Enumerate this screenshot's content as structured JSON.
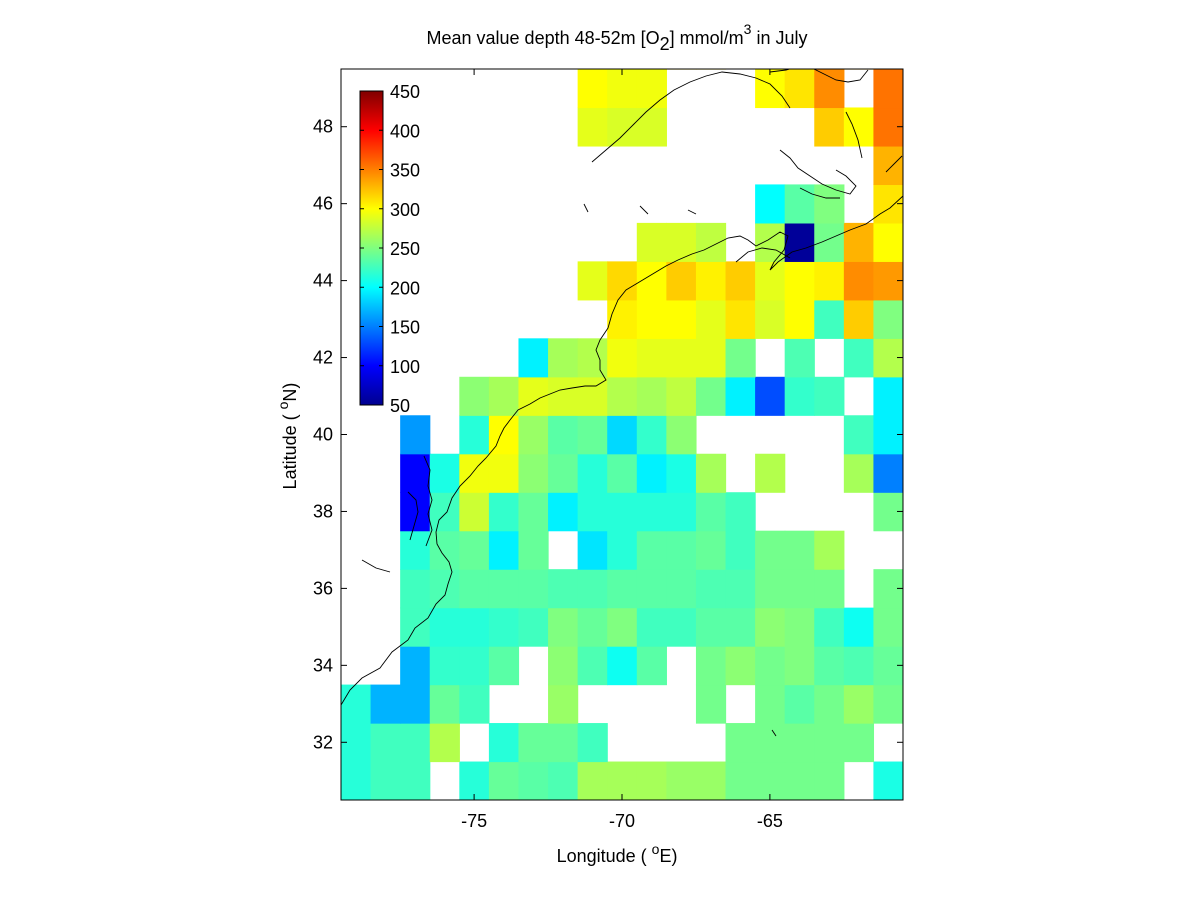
{
  "chart_data": {
    "type": "heatmap",
    "title": {
      "part1": "Mean value depth 48-52m [O",
      "sub": "2",
      "part2": "] mmol/m",
      "sup": "3",
      "part3": " in July"
    },
    "xlabel": {
      "pre": "Longitude ( ",
      "sup": "o",
      "post": "E)"
    },
    "ylabel": {
      "pre": "Latitude ( ",
      "sup": "o",
      "post": "N)"
    },
    "xlim": [
      -79.5,
      -60.5
    ],
    "ylim": [
      30.5,
      49.5
    ],
    "xticks": [
      -75,
      -70,
      -65
    ],
    "yticks": [
      32,
      34,
      36,
      38,
      40,
      42,
      44,
      46,
      48
    ],
    "colorbar": {
      "range": [
        50,
        450
      ],
      "ticks": [
        50,
        100,
        150,
        200,
        250,
        300,
        350,
        400,
        450
      ],
      "colormap": "jet",
      "position": "top-left"
    },
    "grid_cell_size_deg": 1,
    "cells": [
      {
        "lon": -79,
        "lat": 31,
        "v": 215
      },
      {
        "lon": -78,
        "lat": 31,
        "v": 225
      },
      {
        "lon": -77,
        "lat": 31,
        "v": 225
      },
      {
        "lon": -75,
        "lat": 31,
        "v": 215
      },
      {
        "lon": -74,
        "lat": 31,
        "v": 240
      },
      {
        "lon": -73,
        "lat": 31,
        "v": 235
      },
      {
        "lon": -72,
        "lat": 31,
        "v": 230
      },
      {
        "lon": -71,
        "lat": 31,
        "v": 265
      },
      {
        "lon": -70,
        "lat": 31,
        "v": 265
      },
      {
        "lon": -69,
        "lat": 31,
        "v": 265
      },
      {
        "lon": -68,
        "lat": 31,
        "v": 260
      },
      {
        "lon": -67,
        "lat": 31,
        "v": 260
      },
      {
        "lon": -66,
        "lat": 31,
        "v": 245
      },
      {
        "lon": -65,
        "lat": 31,
        "v": 245
      },
      {
        "lon": -64,
        "lat": 31,
        "v": 245
      },
      {
        "lon": -63,
        "lat": 31,
        "v": 245
      },
      {
        "lon": -61,
        "lat": 31,
        "v": 210
      },
      {
        "lon": -79,
        "lat": 32,
        "v": 215
      },
      {
        "lon": -78,
        "lat": 32,
        "v": 225
      },
      {
        "lon": -77,
        "lat": 32,
        "v": 225
      },
      {
        "lon": -76,
        "lat": 32,
        "v": 270
      },
      {
        "lon": -74,
        "lat": 32,
        "v": 215
      },
      {
        "lon": -73,
        "lat": 32,
        "v": 240
      },
      {
        "lon": -72,
        "lat": 32,
        "v": 240
      },
      {
        "lon": -71,
        "lat": 32,
        "v": 225
      },
      {
        "lon": -66,
        "lat": 32,
        "v": 245
      },
      {
        "lon": -65,
        "lat": 32,
        "v": 245
      },
      {
        "lon": -64,
        "lat": 32,
        "v": 245
      },
      {
        "lon": -63,
        "lat": 32,
        "v": 245
      },
      {
        "lon": -62,
        "lat": 32,
        "v": 245
      },
      {
        "lon": -79,
        "lat": 33,
        "v": 215
      },
      {
        "lon": -78,
        "lat": 33,
        "v": 170
      },
      {
        "lon": -77,
        "lat": 33,
        "v": 170
      },
      {
        "lon": -76,
        "lat": 33,
        "v": 240
      },
      {
        "lon": -75,
        "lat": 33,
        "v": 225
      },
      {
        "lon": -72,
        "lat": 33,
        "v": 260
      },
      {
        "lon": -67,
        "lat": 33,
        "v": 245
      },
      {
        "lon": -65,
        "lat": 33,
        "v": 245
      },
      {
        "lon": -64,
        "lat": 33,
        "v": 235
      },
      {
        "lon": -63,
        "lat": 33,
        "v": 245
      },
      {
        "lon": -62,
        "lat": 33,
        "v": 260
      },
      {
        "lon": -61,
        "lat": 33,
        "v": 245
      },
      {
        "lon": -60,
        "lat": 33,
        "v": 275
      },
      {
        "lon": -77,
        "lat": 34,
        "v": 170
      },
      {
        "lon": -76,
        "lat": 34,
        "v": 220
      },
      {
        "lon": -75,
        "lat": 34,
        "v": 220
      },
      {
        "lon": -74,
        "lat": 34,
        "v": 235
      },
      {
        "lon": -72,
        "lat": 34,
        "v": 255
      },
      {
        "lon": -71,
        "lat": 34,
        "v": 230
      },
      {
        "lon": -70,
        "lat": 34,
        "v": 205
      },
      {
        "lon": -69,
        "lat": 34,
        "v": 235
      },
      {
        "lon": -67,
        "lat": 34,
        "v": 245
      },
      {
        "lon": -66,
        "lat": 34,
        "v": 255
      },
      {
        "lon": -65,
        "lat": 34,
        "v": 245
      },
      {
        "lon": -64,
        "lat": 34,
        "v": 250
      },
      {
        "lon": -63,
        "lat": 34,
        "v": 235
      },
      {
        "lon": -62,
        "lat": 34,
        "v": 230
      },
      {
        "lon": -61,
        "lat": 34,
        "v": 240
      },
      {
        "lon": -60,
        "lat": 34,
        "v": 240
      },
      {
        "lon": -77,
        "lat": 35,
        "v": 225
      },
      {
        "lon": -76,
        "lat": 35,
        "v": 215
      },
      {
        "lon": -75,
        "lat": 35,
        "v": 215
      },
      {
        "lon": -74,
        "lat": 35,
        "v": 220
      },
      {
        "lon": -73,
        "lat": 35,
        "v": 225
      },
      {
        "lon": -72,
        "lat": 35,
        "v": 250
      },
      {
        "lon": -71,
        "lat": 35,
        "v": 240
      },
      {
        "lon": -70,
        "lat": 35,
        "v": 250
      },
      {
        "lon": -69,
        "lat": 35,
        "v": 225
      },
      {
        "lon": -68,
        "lat": 35,
        "v": 225
      },
      {
        "lon": -67,
        "lat": 35,
        "v": 235
      },
      {
        "lon": -66,
        "lat": 35,
        "v": 235
      },
      {
        "lon": -65,
        "lat": 35,
        "v": 255
      },
      {
        "lon": -64,
        "lat": 35,
        "v": 250
      },
      {
        "lon": -63,
        "lat": 35,
        "v": 225
      },
      {
        "lon": -62,
        "lat": 35,
        "v": 205
      },
      {
        "lon": -61,
        "lat": 35,
        "v": 245
      },
      {
        "lon": -77,
        "lat": 36,
        "v": 225
      },
      {
        "lon": -76,
        "lat": 36,
        "v": 230
      },
      {
        "lon": -75,
        "lat": 36,
        "v": 235
      },
      {
        "lon": -74,
        "lat": 36,
        "v": 235
      },
      {
        "lon": -73,
        "lat": 36,
        "v": 235
      },
      {
        "lon": -72,
        "lat": 36,
        "v": 230
      },
      {
        "lon": -71,
        "lat": 36,
        "v": 230
      },
      {
        "lon": -70,
        "lat": 36,
        "v": 235
      },
      {
        "lon": -69,
        "lat": 36,
        "v": 235
      },
      {
        "lon": -68,
        "lat": 36,
        "v": 235
      },
      {
        "lon": -67,
        "lat": 36,
        "v": 230
      },
      {
        "lon": -66,
        "lat": 36,
        "v": 230
      },
      {
        "lon": -65,
        "lat": 36,
        "v": 245
      },
      {
        "lon": -64,
        "lat": 36,
        "v": 245
      },
      {
        "lon": -63,
        "lat": 36,
        "v": 245
      },
      {
        "lon": -61,
        "lat": 36,
        "v": 245
      },
      {
        "lon": -77,
        "lat": 37,
        "v": 215
      },
      {
        "lon": -76,
        "lat": 37,
        "v": 235
      },
      {
        "lon": -75,
        "lat": 37,
        "v": 240
      },
      {
        "lon": -74,
        "lat": 37,
        "v": 195
      },
      {
        "lon": -73,
        "lat": 37,
        "v": 240
      },
      {
        "lon": -71,
        "lat": 37,
        "v": 190
      },
      {
        "lon": -70,
        "lat": 37,
        "v": 215
      },
      {
        "lon": -69,
        "lat": 37,
        "v": 235
      },
      {
        "lon": -68,
        "lat": 37,
        "v": 235
      },
      {
        "lon": -67,
        "lat": 37,
        "v": 240
      },
      {
        "lon": -66,
        "lat": 37,
        "v": 225
      },
      {
        "lon": -65,
        "lat": 37,
        "v": 245
      },
      {
        "lon": -64,
        "lat": 37,
        "v": 245
      },
      {
        "lon": -63,
        "lat": 37,
        "v": 265
      },
      {
        "lon": -77,
        "lat": 38,
        "v": 100
      },
      {
        "lon": -76,
        "lat": 38,
        "v": 225
      },
      {
        "lon": -75,
        "lat": 38,
        "v": 280
      },
      {
        "lon": -74,
        "lat": 38,
        "v": 220
      },
      {
        "lon": -73,
        "lat": 38,
        "v": 240
      },
      {
        "lon": -72,
        "lat": 38,
        "v": 195
      },
      {
        "lon": -71,
        "lat": 38,
        "v": 215
      },
      {
        "lon": -70,
        "lat": 38,
        "v": 215
      },
      {
        "lon": -69,
        "lat": 38,
        "v": 215
      },
      {
        "lon": -68,
        "lat": 38,
        "v": 215
      },
      {
        "lon": -67,
        "lat": 38,
        "v": 235
      },
      {
        "lon": -66,
        "lat": 38,
        "v": 225
      },
      {
        "lon": -61,
        "lat": 38,
        "v": 245
      },
      {
        "lon": -77,
        "lat": 39,
        "v": 100
      },
      {
        "lon": -76,
        "lat": 39,
        "v": 210
      },
      {
        "lon": -75,
        "lat": 39,
        "v": 295
      },
      {
        "lon": -74,
        "lat": 39,
        "v": 295
      },
      {
        "lon": -73,
        "lat": 39,
        "v": 255
      },
      {
        "lon": -72,
        "lat": 39,
        "v": 240
      },
      {
        "lon": -71,
        "lat": 39,
        "v": 215
      },
      {
        "lon": -70,
        "lat": 39,
        "v": 235
      },
      {
        "lon": -69,
        "lat": 39,
        "v": 195
      },
      {
        "lon": -68,
        "lat": 39,
        "v": 210
      },
      {
        "lon": -67,
        "lat": 39,
        "v": 265
      },
      {
        "lon": -65,
        "lat": 39,
        "v": 270
      },
      {
        "lon": -62,
        "lat": 39,
        "v": 265
      },
      {
        "lon": -61,
        "lat": 39,
        "v": 150
      },
      {
        "lon": -77,
        "lat": 40,
        "v": 160
      },
      {
        "lon": -75,
        "lat": 40,
        "v": 215
      },
      {
        "lon": -74,
        "lat": 40,
        "v": 300
      },
      {
        "lon": -73,
        "lat": 40,
        "v": 260
      },
      {
        "lon": -72,
        "lat": 40,
        "v": 235
      },
      {
        "lon": -71,
        "lat": 40,
        "v": 240
      },
      {
        "lon": -70,
        "lat": 40,
        "v": 185
      },
      {
        "lon": -69,
        "lat": 40,
        "v": 220
      },
      {
        "lon": -68,
        "lat": 40,
        "v": 255
      },
      {
        "lon": -62,
        "lat": 40,
        "v": 225
      },
      {
        "lon": -61,
        "lat": 40,
        "v": 195
      },
      {
        "lon": -75,
        "lat": 41,
        "v": 255
      },
      {
        "lon": -74,
        "lat": 41,
        "v": 265
      },
      {
        "lon": -73,
        "lat": 41,
        "v": 290
      },
      {
        "lon": -72,
        "lat": 41,
        "v": 285
      },
      {
        "lon": -71,
        "lat": 41,
        "v": 285
      },
      {
        "lon": -70,
        "lat": 41,
        "v": 270
      },
      {
        "lon": -69,
        "lat": 41,
        "v": 265
      },
      {
        "lon": -68,
        "lat": 41,
        "v": 275
      },
      {
        "lon": -67,
        "lat": 41,
        "v": 245
      },
      {
        "lon": -66,
        "lat": 41,
        "v": 195
      },
      {
        "lon": -65,
        "lat": 41,
        "v": 130
      },
      {
        "lon": -64,
        "lat": 41,
        "v": 220
      },
      {
        "lon": -63,
        "lat": 41,
        "v": 225
      },
      {
        "lon": -61,
        "lat": 41,
        "v": 195
      },
      {
        "lon": -73,
        "lat": 42,
        "v": 195
      },
      {
        "lon": -72,
        "lat": 42,
        "v": 265
      },
      {
        "lon": -71,
        "lat": 42,
        "v": 270
      },
      {
        "lon": -70,
        "lat": 42,
        "v": 295
      },
      {
        "lon": -69,
        "lat": 42,
        "v": 290
      },
      {
        "lon": -68,
        "lat": 42,
        "v": 290
      },
      {
        "lon": -67,
        "lat": 42,
        "v": 290
      },
      {
        "lon": -66,
        "lat": 42,
        "v": 245
      },
      {
        "lon": -64,
        "lat": 42,
        "v": 230
      },
      {
        "lon": -62,
        "lat": 42,
        "v": 225
      },
      {
        "lon": -61,
        "lat": 42,
        "v": 270
      },
      {
        "lon": -70,
        "lat": 43,
        "v": 305
      },
      {
        "lon": -69,
        "lat": 43,
        "v": 300
      },
      {
        "lon": -68,
        "lat": 43,
        "v": 300
      },
      {
        "lon": -67,
        "lat": 43,
        "v": 290
      },
      {
        "lon": -66,
        "lat": 43,
        "v": 310
      },
      {
        "lon": -65,
        "lat": 43,
        "v": 285
      },
      {
        "lon": -64,
        "lat": 43,
        "v": 300
      },
      {
        "lon": -63,
        "lat": 43,
        "v": 225
      },
      {
        "lon": -62,
        "lat": 43,
        "v": 320
      },
      {
        "lon": -61,
        "lat": 43,
        "v": 250
      },
      {
        "lon": -71,
        "lat": 44,
        "v": 290
      },
      {
        "lon": -70,
        "lat": 44,
        "v": 315
      },
      {
        "lon": -69,
        "lat": 44,
        "v": 300
      },
      {
        "lon": -68,
        "lat": 44,
        "v": 320
      },
      {
        "lon": -67,
        "lat": 44,
        "v": 305
      },
      {
        "lon": -66,
        "lat": 44,
        "v": 320
      },
      {
        "lon": -65,
        "lat": 44,
        "v": 290
      },
      {
        "lon": -64,
        "lat": 44,
        "v": 300
      },
      {
        "lon": -63,
        "lat": 44,
        "v": 305
      },
      {
        "lon": -62,
        "lat": 44,
        "v": 345
      },
      {
        "lon": -61,
        "lat": 44,
        "v": 340
      },
      {
        "lon": -69,
        "lat": 45,
        "v": 285
      },
      {
        "lon": -68,
        "lat": 45,
        "v": 285
      },
      {
        "lon": -67,
        "lat": 45,
        "v": 275
      },
      {
        "lon": -65,
        "lat": 45,
        "v": 270
      },
      {
        "lon": -64,
        "lat": 45,
        "v": 60
      },
      {
        "lon": -63,
        "lat": 45,
        "v": 245
      },
      {
        "lon": -62,
        "lat": 45,
        "v": 330
      },
      {
        "lon": -61,
        "lat": 45,
        "v": 300
      },
      {
        "lon": -60,
        "lat": 45,
        "v": 300
      },
      {
        "lon": -65,
        "lat": 46,
        "v": 200
      },
      {
        "lon": -64,
        "lat": 46,
        "v": 235
      },
      {
        "lon": -63,
        "lat": 46,
        "v": 250
      },
      {
        "lon": -61,
        "lat": 46,
        "v": 310
      },
      {
        "lon": -60,
        "lat": 46,
        "v": 310
      },
      {
        "lon": -61,
        "lat": 47,
        "v": 330
      },
      {
        "lon": -71,
        "lat": 48,
        "v": 290
      },
      {
        "lon": -70,
        "lat": 48,
        "v": 285
      },
      {
        "lon": -69,
        "lat": 48,
        "v": 285
      },
      {
        "lon": -63,
        "lat": 48,
        "v": 320
      },
      {
        "lon": -62,
        "lat": 48,
        "v": 300
      },
      {
        "lon": -61,
        "lat": 48,
        "v": 355
      },
      {
        "lon": -71,
        "lat": 49,
        "v": 300
      },
      {
        "lon": -70,
        "lat": 49,
        "v": 295
      },
      {
        "lon": -69,
        "lat": 49,
        "v": 295
      },
      {
        "lon": -65,
        "lat": 49,
        "v": 300
      },
      {
        "lon": -64,
        "lat": 49,
        "v": 310
      },
      {
        "lon": -63,
        "lat": 49,
        "v": 345
      },
      {
        "lon": -61,
        "lat": 49,
        "v": 355
      },
      {
        "lon": -68,
        "lat": 50,
        "v": 310
      },
      {
        "lon": -67,
        "lat": 50,
        "v": 310
      },
      {
        "lon": -65,
        "lat": 50,
        "v": 300
      },
      {
        "lon": -62,
        "lat": 50,
        "v": 330
      }
    ]
  }
}
